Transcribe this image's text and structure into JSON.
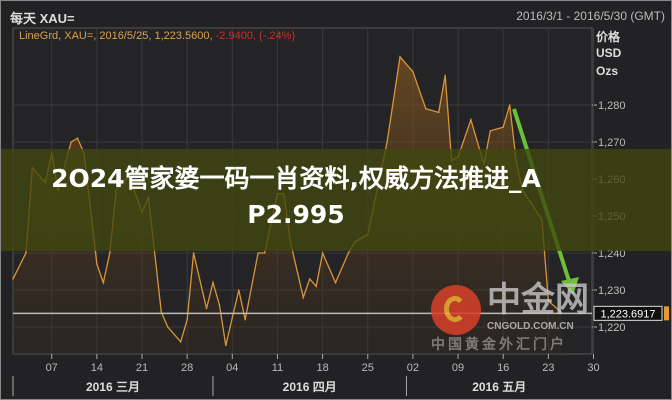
{
  "header": {
    "title": "每天 XAU=",
    "date_range": "2016/3/1 - 2016/5/30 (GMT)"
  },
  "legend": {
    "text": "LineGrd, XAU=, 2016/5/25, 1,223.5600, ",
    "change": "-2.9400, (-.24%)"
  },
  "axis_unit": [
    "价格",
    "USD",
    "Ozs"
  ],
  "banner": {
    "line1": "2O24管家婆一码一肖资料,权威方法推进_A",
    "line2": "P2.995"
  },
  "watermark": {
    "name": "中金网",
    "domain": "CNGOLD.COM.CN",
    "slogan": "中国黄金外汇门户"
  },
  "chart_data": {
    "type": "area",
    "title": "",
    "ylim": [
      1212,
      1300
    ],
    "y_ticks": [
      1220,
      1230,
      1240,
      1250,
      1260,
      1270,
      1280
    ],
    "y_tick_labels": [
      "1,220",
      "1,230",
      "1,240",
      "1,250",
      "1,260",
      "1,270",
      "1,280"
    ],
    "x_ticks": [
      "2016-03-07",
      "2016-03-14",
      "2016-03-21",
      "2016-03-28",
      "2016-04-04",
      "2016-04-11",
      "2016-04-18",
      "2016-04-25",
      "2016-05-02",
      "2016-05-09",
      "2016-05-16",
      "2016-05-23",
      "2016-05-30"
    ],
    "x_tick_labels": [
      "07",
      "14",
      "21",
      "28",
      "04",
      "11",
      "18",
      "25",
      "02",
      "09",
      "16",
      "23",
      "30"
    ],
    "months": [
      {
        "start": "2016-03-01",
        "label": "2016 三月"
      },
      {
        "start": "2016-04-01",
        "label": "2016 四月"
      },
      {
        "start": "2016-05-01",
        "label": "2016 五月"
      }
    ],
    "current_value": 1223.6917,
    "current_label": "1,223.6917",
    "grid": true,
    "line_color": "#d9953a",
    "arrow_color": "#6cc035",
    "series": [
      {
        "points": [
          [
            "2016-03-01",
            1233
          ],
          [
            "2016-03-03",
            1240
          ],
          [
            "2016-03-04",
            1263
          ],
          [
            "2016-03-06",
            1259
          ],
          [
            "2016-03-07",
            1267
          ],
          [
            "2016-03-08",
            1257
          ],
          [
            "2016-03-10",
            1270
          ],
          [
            "2016-03-11",
            1271
          ],
          [
            "2016-03-12",
            1267
          ],
          [
            "2016-03-14",
            1237
          ],
          [
            "2016-03-15",
            1232
          ],
          [
            "2016-03-16",
            1240
          ],
          [
            "2016-03-17",
            1257
          ],
          [
            "2016-03-19",
            1261
          ],
          [
            "2016-03-21",
            1251
          ],
          [
            "2016-03-22",
            1255
          ],
          [
            "2016-03-24",
            1224
          ],
          [
            "2016-03-25",
            1220
          ],
          [
            "2016-03-27",
            1216
          ],
          [
            "2016-03-28",
            1222
          ],
          [
            "2016-03-29",
            1240
          ],
          [
            "2016-03-31",
            1225
          ],
          [
            "2016-04-01",
            1232
          ],
          [
            "2016-04-02",
            1226
          ],
          [
            "2016-04-03",
            1215
          ],
          [
            "2016-04-05",
            1230
          ],
          [
            "2016-04-06",
            1222
          ],
          [
            "2016-04-08",
            1240
          ],
          [
            "2016-04-09",
            1240
          ],
          [
            "2016-04-11",
            1256
          ],
          [
            "2016-04-12",
            1256
          ],
          [
            "2016-04-13",
            1243
          ],
          [
            "2016-04-15",
            1228
          ],
          [
            "2016-04-16",
            1233
          ],
          [
            "2016-04-17",
            1231
          ],
          [
            "2016-04-18",
            1240
          ],
          [
            "2016-04-20",
            1232
          ],
          [
            "2016-04-22",
            1240
          ],
          [
            "2016-04-23",
            1243
          ],
          [
            "2016-04-25",
            1245
          ],
          [
            "2016-04-28",
            1270
          ],
          [
            "2016-04-30",
            1293
          ],
          [
            "2016-05-02",
            1289
          ],
          [
            "2016-05-04",
            1279
          ],
          [
            "2016-05-06",
            1278
          ],
          [
            "2016-05-07",
            1288
          ],
          [
            "2016-05-08",
            1265
          ],
          [
            "2016-05-09",
            1266
          ],
          [
            "2016-05-11",
            1276
          ],
          [
            "2016-05-13",
            1264
          ],
          [
            "2016-05-14",
            1273
          ],
          [
            "2016-05-16",
            1274
          ],
          [
            "2016-05-17",
            1280
          ],
          [
            "2016-05-18",
            1265
          ],
          [
            "2016-05-19",
            1257
          ],
          [
            "2016-05-22",
            1249
          ],
          [
            "2016-05-23",
            1227
          ],
          [
            "2016-05-25",
            1224
          ]
        ]
      }
    ]
  }
}
